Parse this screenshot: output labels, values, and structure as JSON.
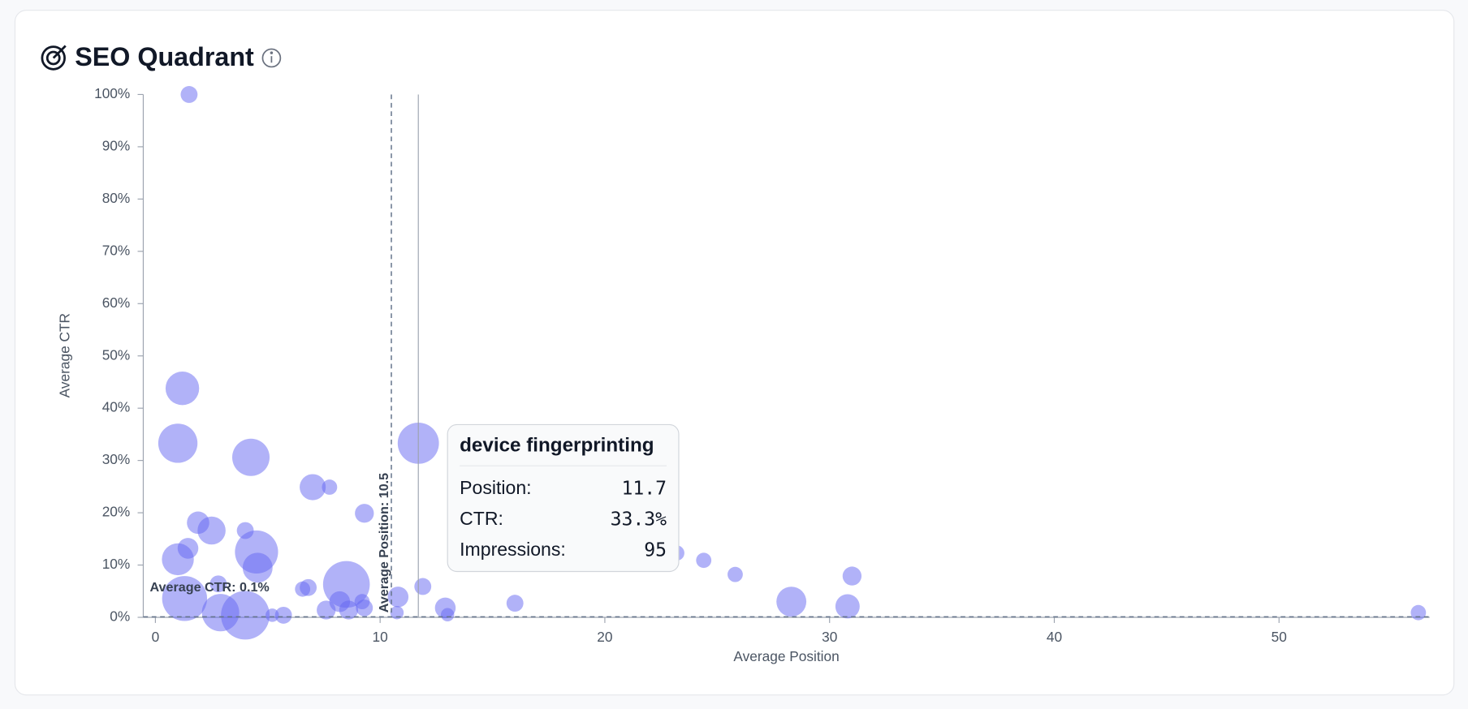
{
  "chart_data": {
    "type": "bubble",
    "title": "SEO Quadrant",
    "x_label": "Average Position",
    "y_label": "Average CTR",
    "x": [
      1.5,
      1.2,
      1.0,
      4.25,
      11.7,
      7.0,
      7.75,
      9.3,
      1.9,
      2.5,
      4.0,
      1.45,
      1.0,
      4.5,
      4.55,
      2.8,
      8.5,
      6.8,
      6.55,
      10.8,
      11.9,
      1.3,
      2.9,
      4.0,
      8.2,
      9.2,
      7.6,
      8.6,
      9.3,
      12.9,
      13.0,
      10.75,
      5.7,
      5.2,
      16.0,
      23.2,
      24.4,
      25.8,
      31.0,
      28.3,
      30.8,
      56.2
    ],
    "values": [
      100,
      43.8,
      33.3,
      30.6,
      33.3,
      24.9,
      24.9,
      19.9,
      18.1,
      16.6,
      16.6,
      13.2,
      11.1,
      12.5,
      9.5,
      6.4,
      6.3,
      5.7,
      5.4,
      3.9,
      5.9,
      3.6,
      0.9,
      0.4,
      3.0,
      3.0,
      1.4,
      1.4,
      1.8,
      1.8,
      0.5,
      0.9,
      0.4,
      0.4,
      2.7,
      12.3,
      10.9,
      8.2,
      7.9,
      3.0,
      2.1,
      0.9
    ],
    "sizes": [
      16,
      63,
      86,
      78,
      95,
      38,
      13,
      20,
      28,
      44,
      16,
      24,
      57,
      104,
      50,
      16,
      122,
      16,
      13,
      24,
      16,
      113,
      78,
      132,
      24,
      13,
      20,
      20,
      16,
      24,
      10,
      10,
      16,
      10,
      16,
      13,
      13,
      13,
      20,
      50,
      33,
      13
    ],
    "color": "#6366f1",
    "xlim": [
      -0.54,
      56.7
    ],
    "xticks": [
      0,
      10,
      20,
      30,
      40,
      50
    ],
    "ylim": [
      0,
      100
    ],
    "yticks": [
      {
        "value": 0,
        "label": "0%"
      },
      {
        "value": 10,
        "label": "10%"
      },
      {
        "value": 20,
        "label": "20%"
      },
      {
        "value": 30,
        "label": "30%"
      },
      {
        "value": 40,
        "label": "40%"
      },
      {
        "value": 50,
        "label": "50%"
      },
      {
        "value": 60,
        "label": "60%"
      },
      {
        "value": 70,
        "label": "70%"
      },
      {
        "value": 80,
        "label": "80%"
      },
      {
        "value": 90,
        "label": "90%"
      },
      {
        "value": 100,
        "label": "100%"
      }
    ],
    "avg_position": {
      "value": 10.5,
      "label": "Average Position: 10.5"
    },
    "avg_ctr": {
      "value": 0.1,
      "label": "Average CTR: 0.1%"
    },
    "tooltip": {
      "title": "device fingerprinting",
      "rows": [
        {
          "label": "Position:",
          "value": "11.7"
        },
        {
          "label": "CTR:",
          "value": "33.3%"
        },
        {
          "label": "Impressions:",
          "value": "95"
        }
      ]
    }
  }
}
